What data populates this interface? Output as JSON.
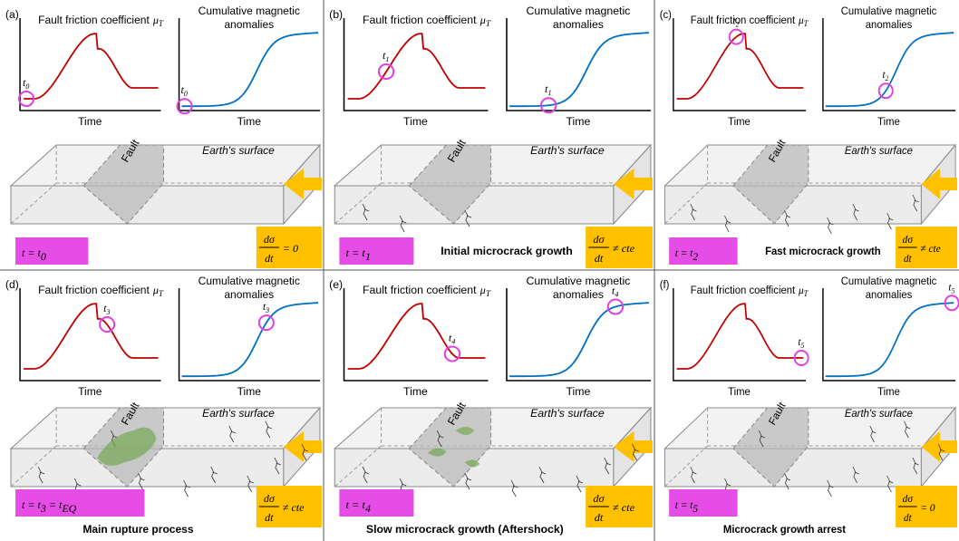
{
  "friction_title": "Fault friction coefficient",
  "mu": "μ",
  "mu_sub": "T",
  "magnetic_title": [
    "Cumulative magnetic",
    "anomalies"
  ],
  "time_label": "Time",
  "time_symbol": "t",
  "fault_label": "Fault",
  "surface_label": "Earth's surface",
  "rate_num": "dσ",
  "rate_den": "dt",
  "panels": [
    {
      "label": "(a)",
      "t_sub": "0",
      "equation": [
        {
          "text": "t = t",
          "sub": "0"
        }
      ],
      "rate_rhs": "= 0"
    },
    {
      "label": "(b)",
      "t_sub": "1",
      "equation": [
        {
          "text": "t = t",
          "sub": "1"
        }
      ],
      "rate_rhs": "≠ cte",
      "caption": "Initial microcrack growth"
    },
    {
      "label": "(c)",
      "t_sub": "2",
      "equation": [
        {
          "text": "t = t",
          "sub": "2"
        }
      ],
      "rate_rhs": "≠ cte",
      "caption": "Fast microcrack growth"
    },
    {
      "label": "(d)",
      "t_sub": "3",
      "equation": [
        {
          "text": "t = t",
          "sub": "3"
        },
        {
          "text": " = t",
          "sub": "EQ"
        }
      ],
      "rate_rhs": "≠ cte",
      "caption": "Main rupture process"
    },
    {
      "label": "(e)",
      "t_sub": "4",
      "equation": [
        {
          "text": "t = t",
          "sub": "4"
        }
      ],
      "rate_rhs": "≠ cte",
      "caption": "Slow microcrack growth (Aftershock)"
    },
    {
      "label": "(f)",
      "t_sub": "5",
      "equation": [
        {
          "text": "t = t",
          "sub": "5"
        }
      ],
      "rate_rhs": "= 0",
      "caption": "Microcrack growth arrest"
    }
  ]
}
